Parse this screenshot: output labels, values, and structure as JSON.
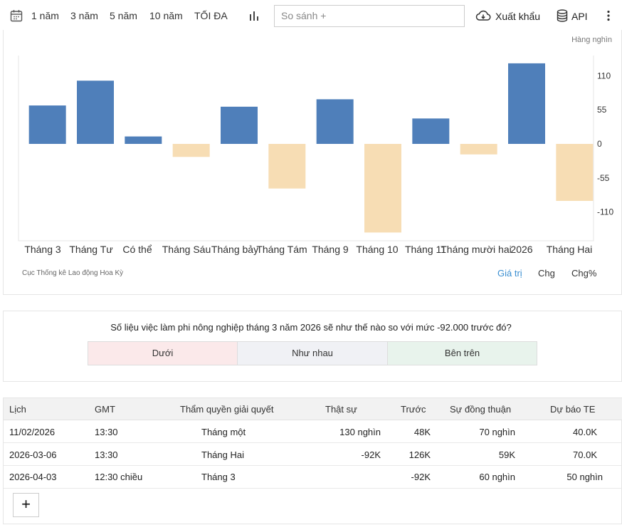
{
  "toolbar": {
    "ranges": [
      "1 năm",
      "3 năm",
      "5 năm",
      "10 năm",
      "TỐI ĐA"
    ],
    "compare_placeholder": "So sánh +",
    "export_label": "Xuất khẩu",
    "api_label": "API"
  },
  "chart_data": {
    "type": "bar",
    "unit_label": "Hàng nghìn",
    "categories": [
      "Tháng 3",
      "Tháng Tư",
      "Có thể",
      "Tháng Sáu",
      "Tháng bảy",
      "Tháng Tám",
      "Tháng 9",
      "Tháng 10",
      "Tháng 11",
      "Tháng mười hai",
      "2026",
      "Tháng Hai"
    ],
    "values": [
      62,
      102,
      12,
      -21,
      60,
      -72,
      72,
      -143,
      41,
      -17,
      130,
      -92
    ],
    "yticks": [
      110,
      55,
      0,
      -55,
      -110
    ],
    "ylim": [
      -155,
      145
    ],
    "colors": {
      "positive": "#4f7fba",
      "negative": "#f7ddb4"
    },
    "legend": "none",
    "grid": false
  },
  "source": "Cục Thống kê Lao động Hoa Kỳ",
  "value_tabs": [
    "Giá trị",
    "Chg",
    "Chg%"
  ],
  "poll": {
    "question": "Số liệu việc làm phi nông nghiệp tháng 3 năm 2026 sẽ như thế nào so với mức -92.000 trước đó?",
    "options": [
      "Dưới",
      "Như nhau",
      "Bên trên"
    ],
    "colors": [
      "#fbe9ea",
      "#f0f1f5",
      "#e8f3ec"
    ]
  },
  "table": {
    "headers": [
      "Lịch",
      "GMT",
      "Thẩm quyền giải quyết",
      "Thật sự",
      "Trước",
      "Sự đồng thuận",
      "Dự báo TE"
    ],
    "rows": [
      [
        "11/02/2026",
        "13:30",
        "Tháng một",
        "130 nghìn",
        "48K",
        "70 nghìn",
        "40.0K"
      ],
      [
        "2026-03-06",
        "13:30",
        "Tháng Hai",
        "-92K",
        "126K",
        "59K",
        "70.0K"
      ],
      [
        "2026-04-03",
        "12:30 chiều",
        "Tháng 3",
        "",
        "-92K",
        "60 nghìn",
        "50 nghìn"
      ]
    ]
  },
  "add_label": "+"
}
